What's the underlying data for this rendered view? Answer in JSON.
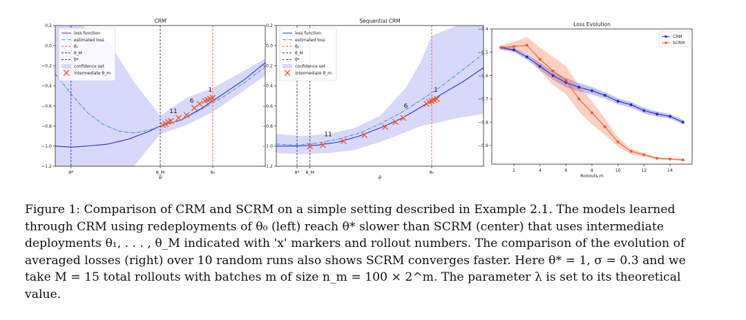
{
  "caption": {
    "lines": [
      "Figure 1: Comparison of CRM and SCRM on a simple setting described in Example 2.1. The models learned",
      "through CRM using redeployments of θ₀ (left) reach θ* slower than SCRM (center) that uses intermediate",
      "deployments θ₁, . . . , θ_M indicated with 'x' markers and rollout numbers. The comparison of the evolution of",
      "averaged losses (right) over 10 random runs also shows SCRM converges faster. Here θ* = 1, σ = 0.3 and we",
      "take M = 15 total rollouts with batches m of size n_m = 100 × 2^m. The parameter λ is set to its theoretical",
      "value."
    ]
  },
  "colors": {
    "loss_function": "#2a2ad8",
    "estimated_loss": "#3b9bb0",
    "theta0": "#ef5f3a",
    "thetaM": "#333333",
    "theta_star": "#2525b5",
    "confidence": "#d8d8fb",
    "marker": "#f05a28",
    "crm": "#1f2bd6",
    "scrm": "#f05a28"
  },
  "chart_data": [
    {
      "type": "line",
      "title": "CRM",
      "xlabel": "θ",
      "ylabel": "",
      "ylim": [
        -1.2,
        0.2
      ],
      "yticks": [
        "0.2",
        "0.0",
        "−0.2",
        "−0.4",
        "−0.6",
        "−0.8",
        "−1.0",
        "−1.2"
      ],
      "ytick_values": [
        0.2,
        0.0,
        -0.2,
        -0.4,
        -0.6,
        -0.8,
        -1.0,
        -1.2
      ],
      "xlim": [
        0.0,
        4.0
      ],
      "xticks": [
        {
          "label": "θ*",
          "x": 0.3
        },
        {
          "label": "θ_M",
          "x": 2.0
        },
        {
          "label": "θ₀",
          "x": 3.0
        }
      ],
      "legend": {
        "position": "top-left",
        "entries": [
          "loss function",
          "estimated loss",
          "θ₀",
          "θ_M",
          "θ*",
          "confidence set",
          "intermediate θ_m"
        ]
      },
      "vlines": [
        {
          "name": "θ₀",
          "x": 3.0
        },
        {
          "name": "θ_M",
          "x": 2.0
        },
        {
          "name": "θ*",
          "x": 0.3
        }
      ],
      "series": [
        {
          "name": "loss function",
          "x": [
            0.0,
            0.3,
            0.6,
            1.0,
            1.4,
            1.8,
            2.0,
            2.4,
            2.8,
            3.2,
            3.6,
            4.0
          ],
          "values": [
            -1.0,
            -1.01,
            -1.0,
            -0.98,
            -0.93,
            -0.85,
            -0.8,
            -0.74,
            -0.62,
            -0.48,
            -0.34,
            -0.17
          ]
        },
        {
          "name": "estimated loss",
          "x": [
            0.0,
            0.3,
            0.6,
            0.9,
            1.2,
            1.5,
            1.8,
            2.0,
            2.4,
            2.8,
            3.2,
            3.6,
            4.0
          ],
          "values": [
            -0.28,
            -0.48,
            -0.66,
            -0.78,
            -0.85,
            -0.87,
            -0.84,
            -0.8,
            -0.74,
            -0.63,
            -0.51,
            -0.37,
            -0.21
          ]
        }
      ],
      "confidence_band": {
        "x": [
          0.0,
          0.5,
          1.0,
          1.5,
          2.0,
          2.5,
          3.0,
          3.5,
          4.0
        ],
        "upper": [
          0.2,
          0.2,
          0.05,
          -0.36,
          -0.7,
          -0.52,
          -0.42,
          -0.28,
          -0.13
        ],
        "lower": [
          -1.2,
          -1.2,
          -1.2,
          -1.2,
          -0.88,
          -0.79,
          -0.66,
          -0.48,
          -0.3
        ]
      },
      "markers": {
        "name": "intermediate θ_m",
        "x": [
          2.05,
          2.1,
          2.15,
          2.2,
          2.35,
          2.5,
          2.65,
          2.75,
          2.85,
          2.9,
          2.95,
          3.0
        ],
        "values": [
          -0.79,
          -0.78,
          -0.76,
          -0.75,
          -0.72,
          -0.69,
          -0.62,
          -0.58,
          -0.55,
          -0.54,
          -0.53,
          -0.52
        ]
      },
      "annotations": [
        {
          "text": "1",
          "x": 2.95,
          "y": -0.46
        },
        {
          "text": "6",
          "x": 2.6,
          "y": -0.57
        },
        {
          "text": "11",
          "x": 2.25,
          "y": -0.67
        }
      ]
    },
    {
      "type": "line",
      "title": "Sequential CRM",
      "xlabel": "θ",
      "ylabel": "",
      "ylim": [
        -1.2,
        0.2
      ],
      "yticks": [
        "0.2",
        "0.0",
        "−0.2",
        "−0.4",
        "−0.6",
        "−0.8",
        "−1.0",
        "−1.2"
      ],
      "ytick_values": [
        0.2,
        0.0,
        -0.2,
        -0.4,
        -0.6,
        -0.8,
        -1.0,
        -1.2
      ],
      "xlim": [
        0.0,
        4.0
      ],
      "xticks": [
        {
          "label": "θ*",
          "x": 0.4
        },
        {
          "label": "θ_M",
          "x": 0.65
        },
        {
          "label": "θ₀",
          "x": 3.0
        }
      ],
      "legend": {
        "position": "top-left",
        "entries": [
          "loss function",
          "estimated loss",
          "θ₀",
          "θ_M",
          "θ*",
          "confidence set",
          "intermediate θ_m"
        ]
      },
      "vlines": [
        {
          "name": "θ₀",
          "x": 3.0
        },
        {
          "name": "θ_M",
          "x": 0.65
        },
        {
          "name": "θ*",
          "x": 0.4
        }
      ],
      "series": [
        {
          "name": "loss function",
          "x": [
            0.0,
            0.4,
            0.8,
            1.2,
            1.6,
            2.0,
            2.4,
            2.8,
            3.2,
            3.6,
            4.0
          ],
          "values": [
            -1.0,
            -1.0,
            -0.99,
            -0.96,
            -0.9,
            -0.82,
            -0.73,
            -0.61,
            -0.48,
            -0.36,
            -0.22
          ]
        },
        {
          "name": "estimated loss",
          "x": [
            0.0,
            0.4,
            0.8,
            1.2,
            1.6,
            2.0,
            2.4,
            2.8,
            3.2,
            3.6,
            4.0
          ],
          "values": [
            -0.98,
            -0.99,
            -0.97,
            -0.93,
            -0.87,
            -0.78,
            -0.67,
            -0.54,
            -0.4,
            -0.24,
            -0.08
          ]
        }
      ],
      "confidence_band": {
        "x": [
          0.0,
          0.5,
          1.0,
          1.5,
          2.0,
          2.5,
          2.8,
          3.0,
          3.5,
          4.0
        ],
        "upper": [
          -0.88,
          -0.9,
          -0.88,
          -0.82,
          -0.7,
          -0.42,
          -0.15,
          0.1,
          0.2,
          0.2
        ],
        "lower": [
          -1.07,
          -1.08,
          -1.07,
          -1.04,
          -0.96,
          -0.86,
          -0.8,
          -0.78,
          -0.72,
          -0.68
        ]
      },
      "markers": {
        "name": "intermediate θ_m",
        "x": [
          0.65,
          0.9,
          1.3,
          1.7,
          2.1,
          2.3,
          2.45,
          2.9,
          2.95,
          3.0,
          3.05,
          3.1
        ],
        "values": [
          -1.0,
          -0.99,
          -0.95,
          -0.89,
          -0.81,
          -0.76,
          -0.72,
          -0.58,
          -0.56,
          -0.55,
          -0.54,
          -0.53
        ]
      },
      "annotations": [
        {
          "text": "1",
          "x": 3.08,
          "y": -0.46
        },
        {
          "text": "6",
          "x": 2.5,
          "y": -0.62
        },
        {
          "text": "11",
          "x": 1.0,
          "y": -0.9
        }
      ]
    },
    {
      "type": "line",
      "title": "Loss Evolution",
      "xlabel": "Rollouts m",
      "ylabel": "Loss",
      "ylim": [
        -0.98,
        -0.4
      ],
      "yticks": [
        "−0.4",
        "−0.5",
        "−0.6",
        "−0.7",
        "−0.8",
        "−0.9"
      ],
      "ytick_values": [
        -0.4,
        -0.5,
        -0.6,
        -0.7,
        -0.8,
        -0.9
      ],
      "xlim": [
        0.3,
        15.7
      ],
      "xticks": [
        "2",
        "4",
        "6",
        "8",
        "10",
        "12",
        "14"
      ],
      "xtick_values": [
        2,
        4,
        6,
        8,
        10,
        12,
        14
      ],
      "legend": {
        "position": "top-right",
        "entries": [
          "CRM",
          "SCRM"
        ]
      },
      "x": [
        1,
        2,
        3,
        4,
        5,
        6,
        7,
        8,
        9,
        10,
        11,
        12,
        13,
        14,
        15
      ],
      "series": [
        {
          "name": "CRM",
          "values": [
            -0.48,
            -0.49,
            -0.52,
            -0.56,
            -0.6,
            -0.63,
            -0.65,
            -0.665,
            -0.685,
            -0.71,
            -0.725,
            -0.75,
            -0.765,
            -0.775,
            -0.8
          ],
          "band": [
            0.008,
            0.01,
            0.012,
            0.015,
            0.018,
            0.02,
            0.018,
            0.016,
            0.014,
            0.013,
            0.012,
            0.012,
            0.011,
            0.01,
            0.01
          ]
        },
        {
          "name": "SCRM",
          "values": [
            -0.48,
            -0.475,
            -0.47,
            -0.53,
            -0.58,
            -0.62,
            -0.7,
            -0.76,
            -0.82,
            -0.885,
            -0.925,
            -0.94,
            -0.955,
            -0.958,
            -0.962
          ],
          "band": [
            0.01,
            0.02,
            0.035,
            0.05,
            0.06,
            0.06,
            0.055,
            0.05,
            0.035,
            0.02,
            0.012,
            0.008,
            0.005,
            0.004,
            0.004
          ]
        }
      ]
    }
  ]
}
